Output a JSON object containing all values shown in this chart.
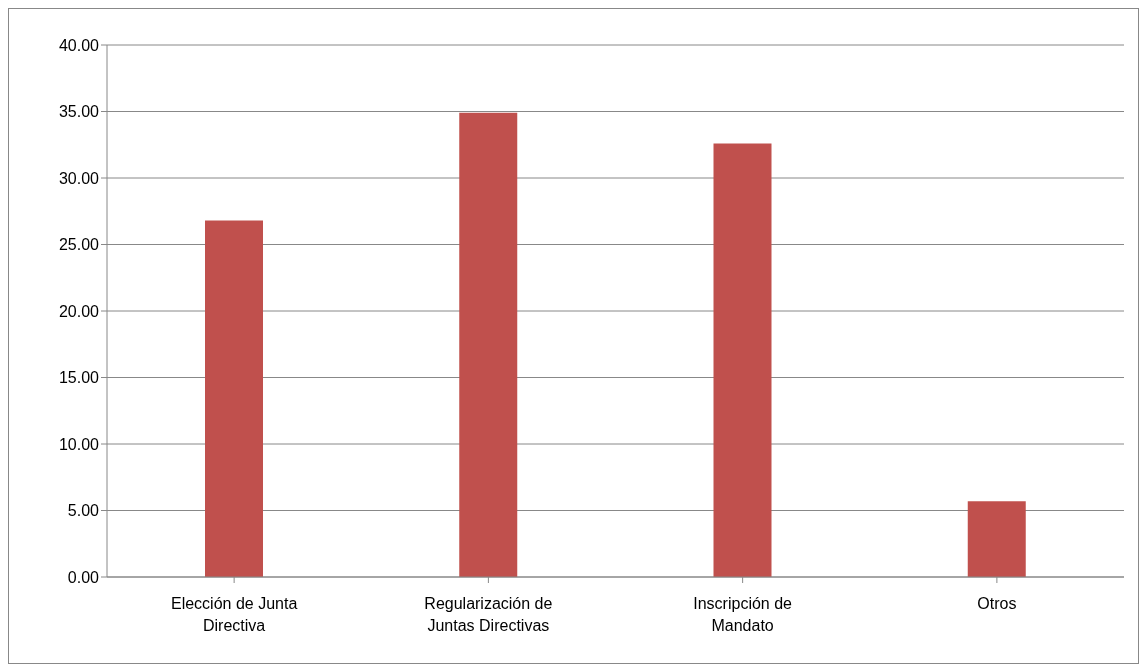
{
  "chart_data": {
    "type": "bar",
    "categories": [
      "Elección de Junta Directiva",
      "Regularización de Juntas Directivas",
      "Inscripción de Mandato",
      "Otros"
    ],
    "values": [
      26.8,
      34.9,
      32.6,
      5.7
    ],
    "color": "#c0504d",
    "ylim": [
      0,
      40
    ],
    "yticks": [
      {
        "value": 0,
        "label": "0.00"
      },
      {
        "value": 5,
        "label": "5.00"
      },
      {
        "value": 10,
        "label": "10.00"
      },
      {
        "value": 15,
        "label": "15.00"
      },
      {
        "value": 20,
        "label": "20.00"
      },
      {
        "value": 25,
        "label": "25.00"
      },
      {
        "value": 30,
        "label": "30.00"
      },
      {
        "value": 35,
        "label": "35.00"
      },
      {
        "value": 40,
        "label": "40.00"
      }
    ],
    "grid": "y"
  }
}
